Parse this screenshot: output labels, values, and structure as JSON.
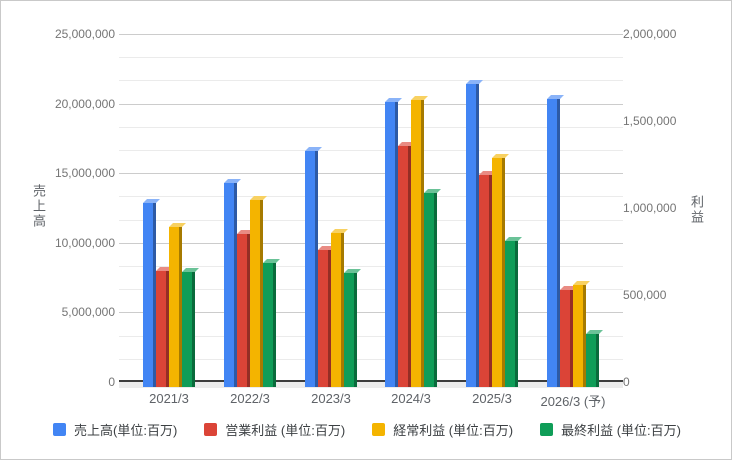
{
  "chart_data": {
    "type": "bar",
    "title": "",
    "categories": [
      "2021/3",
      "2022/3",
      "2023/3",
      "2024/3",
      "2025/3",
      "2026/3 (予)"
    ],
    "series": [
      {
        "key": "revenue",
        "name": "売上高(単位:百万)",
        "axis": "left",
        "color": "#4285f4",
        "values": [
          13170519,
          14552696,
          16907725,
          20428802,
          21688767,
          20650000
        ]
      },
      {
        "key": "operating-profit",
        "name": "営業利益 (単位:百万)",
        "axis": "right",
        "color": "#db4437",
        "values": [
          660208,
          871232,
          780769,
          1381977,
          1213450,
          550000
        ]
      },
      {
        "key": "ordinary-profit",
        "name": "経常利益 (単位:百万)",
        "axis": "right",
        "color": "#f4b400",
        "values": [
          914053,
          1070190,
          879565,
          1642384,
          1310089,
          580000
        ]
      },
      {
        "key": "net-profit",
        "name": "最終利益 (単位:百万)",
        "axis": "right",
        "color": "#0f9d58",
        "values": [
          657425,
          707067,
          651416,
          1107174,
          835840,
          300000
        ]
      }
    ],
    "left_axis": {
      "label": "売上高",
      "range": [
        0,
        25000000
      ],
      "tick_labels": [
        "0",
        "5,000,000",
        "10,000,000",
        "15,000,000",
        "20,000,000",
        "25,000,000"
      ]
    },
    "right_axis": {
      "label": "利益",
      "range": [
        0,
        2000000
      ],
      "tick_labels": [
        "0",
        "500,000",
        "1,000,000",
        "1,500,000",
        "2,000,000"
      ]
    },
    "grid": true,
    "minor_gridlines_per_major": 2,
    "legend_position": "bottom"
  }
}
